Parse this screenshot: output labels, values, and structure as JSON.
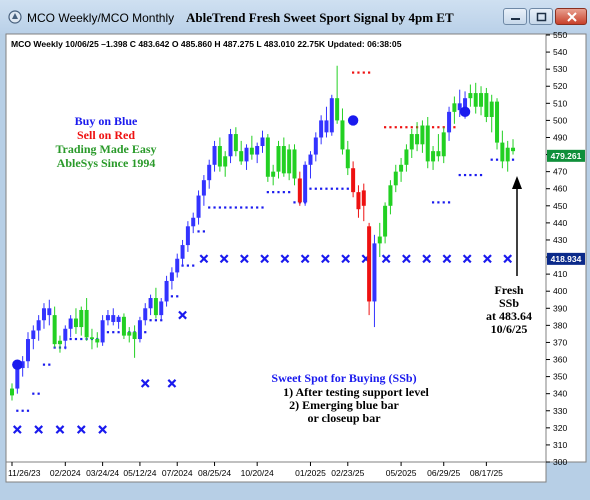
{
  "window": {
    "title": "MCO  Weekly/MCO  Monthly",
    "chart_title": "AbleTrend Fresh Sweet Sport Signal by 4pm ET",
    "buttons": [
      "minimize-icon",
      "maximize-icon",
      "close-icon"
    ]
  },
  "colors": {
    "up_candle": "#22d022",
    "down_candle": "#ee1111",
    "neutral_candle": "#3333ff",
    "buy_dot": "#1a1aee",
    "sell_dot": "#ee1111",
    "support_x": "#1a1aee",
    "price_tag": "#0b2a8a"
  },
  "chart_data": {
    "type": "candlestick",
    "header": "MCO  Weekly 10/06/25 –1.398 C 483.642 O 485.860 H 487.275 L 483.010 22.75K Updated: 06:38:05",
    "title": "AbleTrend Fresh Sweet Sport Signal by 4pm ET",
    "ylim": [
      300,
      550
    ],
    "y_ticks": [
      300,
      310,
      320,
      330,
      340,
      350,
      360,
      370,
      380,
      390,
      400,
      410,
      420,
      430,
      440,
      450,
      460,
      470,
      480,
      490,
      500,
      510,
      520,
      530,
      540,
      550
    ],
    "x_tick_labels": [
      {
        "index": 0,
        "label": "11/26/23"
      },
      {
        "index": 10,
        "label": "02/2024"
      },
      {
        "index": 17,
        "label": "03/24/24"
      },
      {
        "index": 24,
        "label": "05/12/24"
      },
      {
        "index": 31,
        "label": "07/2024"
      },
      {
        "index": 38,
        "label": "08/25/24"
      },
      {
        "index": 46,
        "label": "10/20/24"
      },
      {
        "index": 56,
        "label": "01/2025"
      },
      {
        "index": 63,
        "label": "02/23/25"
      },
      {
        "index": 73,
        "label": "05/2025"
      },
      {
        "index": 81,
        "label": "06/29/25"
      },
      {
        "index": 89,
        "label": "08/17/25"
      }
    ],
    "candles": [
      {
        "o": 339,
        "h": 346,
        "l": 336,
        "c": 343,
        "t": "up"
      },
      {
        "o": 343,
        "h": 358,
        "l": 340,
        "c": 355,
        "t": "neutral"
      },
      {
        "o": 355,
        "h": 362,
        "l": 350,
        "c": 359,
        "t": "neutral"
      },
      {
        "o": 359,
        "h": 376,
        "l": 355,
        "c": 372,
        "t": "neutral"
      },
      {
        "o": 372,
        "h": 380,
        "l": 366,
        "c": 377,
        "t": "neutral"
      },
      {
        "o": 377,
        "h": 386,
        "l": 371,
        "c": 383,
        "t": "neutral"
      },
      {
        "o": 383,
        "h": 393,
        "l": 378,
        "c": 390,
        "t": "neutral"
      },
      {
        "o": 390,
        "h": 395,
        "l": 380,
        "c": 386,
        "t": "neutral"
      },
      {
        "o": 386,
        "h": 391,
        "l": 367,
        "c": 369,
        "t": "up"
      },
      {
        "o": 369,
        "h": 374,
        "l": 364,
        "c": 371,
        "t": "up"
      },
      {
        "o": 371,
        "h": 380,
        "l": 366,
        "c": 378,
        "t": "neutral"
      },
      {
        "o": 378,
        "h": 386,
        "l": 373,
        "c": 384,
        "t": "neutral"
      },
      {
        "o": 384,
        "h": 390,
        "l": 375,
        "c": 379,
        "t": "up"
      },
      {
        "o": 379,
        "h": 391,
        "l": 374,
        "c": 389,
        "t": "up"
      },
      {
        "o": 389,
        "h": 396,
        "l": 371,
        "c": 373,
        "t": "up"
      },
      {
        "o": 373,
        "h": 378,
        "l": 366,
        "c": 372,
        "t": "up"
      },
      {
        "o": 372,
        "h": 376,
        "l": 367,
        "c": 370,
        "t": "up"
      },
      {
        "o": 370,
        "h": 386,
        "l": 368,
        "c": 383,
        "t": "neutral"
      },
      {
        "o": 383,
        "h": 389,
        "l": 380,
        "c": 386,
        "t": "neutral"
      },
      {
        "o": 386,
        "h": 390,
        "l": 380,
        "c": 382,
        "t": "neutral"
      },
      {
        "o": 382,
        "h": 386,
        "l": 378,
        "c": 385,
        "t": "neutral"
      },
      {
        "o": 385,
        "h": 387,
        "l": 372,
        "c": 374,
        "t": "up"
      },
      {
        "o": 374,
        "h": 379,
        "l": 370,
        "c": 376,
        "t": "up"
      },
      {
        "o": 376,
        "h": 380,
        "l": 361,
        "c": 372,
        "t": "up"
      },
      {
        "o": 372,
        "h": 385,
        "l": 370,
        "c": 383,
        "t": "neutral"
      },
      {
        "o": 383,
        "h": 393,
        "l": 380,
        "c": 390,
        "t": "neutral"
      },
      {
        "o": 390,
        "h": 398,
        "l": 386,
        "c": 396,
        "t": "neutral"
      },
      {
        "o": 396,
        "h": 402,
        "l": 384,
        "c": 386,
        "t": "up"
      },
      {
        "o": 386,
        "h": 396,
        "l": 383,
        "c": 394,
        "t": "neutral"
      },
      {
        "o": 394,
        "h": 409,
        "l": 391,
        "c": 406,
        "t": "neutral"
      },
      {
        "o": 406,
        "h": 414,
        "l": 401,
        "c": 411,
        "t": "neutral"
      },
      {
        "o": 411,
        "h": 422,
        "l": 408,
        "c": 419,
        "t": "neutral"
      },
      {
        "o": 419,
        "h": 430,
        "l": 415,
        "c": 427,
        "t": "neutral"
      },
      {
        "o": 427,
        "h": 441,
        "l": 423,
        "c": 438,
        "t": "neutral"
      },
      {
        "o": 438,
        "h": 446,
        "l": 434,
        "c": 443,
        "t": "neutral"
      },
      {
        "o": 443,
        "h": 459,
        "l": 439,
        "c": 456,
        "t": "neutral"
      },
      {
        "o": 456,
        "h": 468,
        "l": 450,
        "c": 465,
        "t": "neutral"
      },
      {
        "o": 465,
        "h": 477,
        "l": 460,
        "c": 474,
        "t": "neutral"
      },
      {
        "o": 474,
        "h": 488,
        "l": 470,
        "c": 485,
        "t": "neutral"
      },
      {
        "o": 485,
        "h": 490,
        "l": 470,
        "c": 473,
        "t": "up"
      },
      {
        "o": 473,
        "h": 482,
        "l": 467,
        "c": 479,
        "t": "up"
      },
      {
        "o": 479,
        "h": 495,
        "l": 475,
        "c": 492,
        "t": "neutral"
      },
      {
        "o": 492,
        "h": 496,
        "l": 479,
        "c": 482,
        "t": "up"
      },
      {
        "o": 482,
        "h": 488,
        "l": 474,
        "c": 476,
        "t": "up"
      },
      {
        "o": 476,
        "h": 486,
        "l": 471,
        "c": 484,
        "t": "neutral"
      },
      {
        "o": 484,
        "h": 491,
        "l": 477,
        "c": 480,
        "t": "up"
      },
      {
        "o": 480,
        "h": 487,
        "l": 475,
        "c": 485,
        "t": "neutral"
      },
      {
        "o": 485,
        "h": 494,
        "l": 481,
        "c": 490,
        "t": "neutral"
      },
      {
        "o": 490,
        "h": 492,
        "l": 464,
        "c": 467,
        "t": "up"
      },
      {
        "o": 467,
        "h": 474,
        "l": 462,
        "c": 470,
        "t": "up"
      },
      {
        "o": 470,
        "h": 488,
        "l": 466,
        "c": 485,
        "t": "up"
      },
      {
        "o": 485,
        "h": 490,
        "l": 467,
        "c": 469,
        "t": "up"
      },
      {
        "o": 469,
        "h": 486,
        "l": 465,
        "c": 483,
        "t": "up"
      },
      {
        "o": 483,
        "h": 486,
        "l": 462,
        "c": 466,
        "t": "up"
      },
      {
        "o": 466,
        "h": 470,
        "l": 450,
        "c": 452,
        "t": "down"
      },
      {
        "o": 452,
        "h": 476,
        "l": 450,
        "c": 474,
        "t": "neutral"
      },
      {
        "o": 474,
        "h": 482,
        "l": 466,
        "c": 480,
        "t": "neutral"
      },
      {
        "o": 480,
        "h": 493,
        "l": 476,
        "c": 490,
        "t": "neutral"
      },
      {
        "o": 490,
        "h": 503,
        "l": 486,
        "c": 500,
        "t": "neutral"
      },
      {
        "o": 500,
        "h": 508,
        "l": 490,
        "c": 493,
        "t": "neutral"
      },
      {
        "o": 493,
        "h": 515,
        "l": 491,
        "c": 513,
        "t": "neutral"
      },
      {
        "o": 513,
        "h": 532,
        "l": 498,
        "c": 500,
        "t": "up"
      },
      {
        "o": 500,
        "h": 507,
        "l": 480,
        "c": 483,
        "t": "up"
      },
      {
        "o": 483,
        "h": 488,
        "l": 468,
        "c": 472,
        "t": "up"
      },
      {
        "o": 472,
        "h": 476,
        "l": 455,
        "c": 458,
        "t": "down"
      },
      {
        "o": 458,
        "h": 462,
        "l": 443,
        "c": 448,
        "t": "down"
      },
      {
        "o": 450,
        "h": 463,
        "l": 441,
        "c": 459,
        "t": "down"
      },
      {
        "o": 438,
        "h": 440,
        "l": 386,
        "c": 394,
        "t": "down"
      },
      {
        "o": 394,
        "h": 433,
        "l": 379,
        "c": 428,
        "t": "neutral"
      },
      {
        "o": 428,
        "h": 440,
        "l": 420,
        "c": 432,
        "t": "up"
      },
      {
        "o": 432,
        "h": 452,
        "l": 428,
        "c": 450,
        "t": "up"
      },
      {
        "o": 450,
        "h": 465,
        "l": 445,
        "c": 462,
        "t": "up"
      },
      {
        "o": 462,
        "h": 474,
        "l": 458,
        "c": 470,
        "t": "up"
      },
      {
        "o": 470,
        "h": 478,
        "l": 464,
        "c": 474,
        "t": "up"
      },
      {
        "o": 474,
        "h": 486,
        "l": 470,
        "c": 483,
        "t": "up"
      },
      {
        "o": 483,
        "h": 495,
        "l": 478,
        "c": 492,
        "t": "up"
      },
      {
        "o": 492,
        "h": 499,
        "l": 482,
        "c": 486,
        "t": "up"
      },
      {
        "o": 486,
        "h": 500,
        "l": 481,
        "c": 497,
        "t": "up"
      },
      {
        "o": 497,
        "h": 502,
        "l": 472,
        "c": 476,
        "t": "up"
      },
      {
        "o": 476,
        "h": 485,
        "l": 471,
        "c": 482,
        "t": "up"
      },
      {
        "o": 482,
        "h": 492,
        "l": 476,
        "c": 479,
        "t": "up"
      },
      {
        "o": 479,
        "h": 496,
        "l": 475,
        "c": 493,
        "t": "up"
      },
      {
        "o": 493,
        "h": 508,
        "l": 488,
        "c": 505,
        "t": "neutral"
      },
      {
        "o": 505,
        "h": 514,
        "l": 498,
        "c": 510,
        "t": "up"
      },
      {
        "o": 510,
        "h": 518,
        "l": 502,
        "c": 506,
        "t": "neutral"
      },
      {
        "o": 506,
        "h": 517,
        "l": 501,
        "c": 513,
        "t": "neutral"
      },
      {
        "o": 513,
        "h": 521,
        "l": 508,
        "c": 516,
        "t": "up"
      },
      {
        "o": 516,
        "h": 522,
        "l": 504,
        "c": 508,
        "t": "up"
      },
      {
        "o": 508,
        "h": 520,
        "l": 503,
        "c": 516,
        "t": "up"
      },
      {
        "o": 516,
        "h": 519,
        "l": 499,
        "c": 502,
        "t": "up"
      },
      {
        "o": 502,
        "h": 515,
        "l": 493,
        "c": 511,
        "t": "up"
      },
      {
        "o": 511,
        "h": 513,
        "l": 483,
        "c": 487,
        "t": "up"
      },
      {
        "o": 487,
        "h": 494,
        "l": 472,
        "c": 476,
        "t": "up"
      },
      {
        "o": 476,
        "h": 488,
        "l": 470,
        "c": 484,
        "t": "up"
      },
      {
        "o": 484,
        "h": 489,
        "l": 480,
        "c": 482,
        "t": "up"
      }
    ],
    "buy_dots": [
      {
        "index": 1,
        "value": 357
      },
      {
        "index": 64,
        "value": 500
      },
      {
        "index": 85,
        "value": 505
      }
    ],
    "support_x": [
      {
        "i0": 1,
        "i1": 18,
        "value": 319
      },
      {
        "i0": 25,
        "i1": 30,
        "value": 346
      },
      {
        "i0": 32,
        "i1": 32,
        "value": 386
      },
      {
        "i0": 36,
        "i1": 95,
        "value": 419
      }
    ],
    "blue_dots": [
      {
        "i0": 1,
        "i1": 3,
        "value": 330
      },
      {
        "i0": 4,
        "i1": 5,
        "value": 340
      },
      {
        "i0": 6,
        "i1": 7,
        "value": 357
      },
      {
        "i0": 8,
        "i1": 10,
        "value": 367
      },
      {
        "i0": 11,
        "i1": 17,
        "value": 372
      },
      {
        "i0": 18,
        "i1": 25,
        "value": 376
      },
      {
        "i0": 26,
        "i1": 28,
        "value": 383
      },
      {
        "i0": 29,
        "i1": 31,
        "value": 397
      },
      {
        "i0": 32,
        "i1": 34,
        "value": 415
      },
      {
        "i0": 35,
        "i1": 36,
        "value": 435
      },
      {
        "i0": 37,
        "i1": 47,
        "value": 449
      },
      {
        "i0": 48,
        "i1": 52,
        "value": 458
      },
      {
        "i0": 53,
        "i1": 55,
        "value": 452
      },
      {
        "i0": 56,
        "i1": 63,
        "value": 460
      },
      {
        "i0": 79,
        "i1": 82,
        "value": 452
      },
      {
        "i0": 84,
        "i1": 88,
        "value": 468
      },
      {
        "i0": 90,
        "i1": 94,
        "value": 477
      }
    ],
    "red_dots": [
      {
        "i0": 59,
        "i1": 60,
        "value": 498
      },
      {
        "i0": 64,
        "i1": 67,
        "value": 528
      },
      {
        "i0": 70,
        "i1": 83,
        "value": 496
      }
    ],
    "price_tags": [
      {
        "value": 479.261,
        "label": "479.261",
        "style": "green"
      },
      {
        "value": 418.934,
        "label": "418.934",
        "style": "navy"
      }
    ],
    "annotations": {
      "legend_lines": [
        {
          "text": "Buy on Blue",
          "color": "#1a1aee"
        },
        {
          "text": "Sell on Red",
          "color": "#ee1111"
        },
        {
          "text": "Trading Made Easy",
          "color": "#2a9a2a"
        },
        {
          "text": "AbleSys Since 1994",
          "color": "#2a9a2a"
        }
      ],
      "fresh_lines": [
        "Fresh",
        "SSb",
        "at 483.64",
        "10/6/25"
      ],
      "sweet_lines": [
        "Sweet Spot for Buying (SSb)",
        "1) After testing support level",
        "2) Emerging blue bar",
        "or closeup bar"
      ]
    }
  }
}
